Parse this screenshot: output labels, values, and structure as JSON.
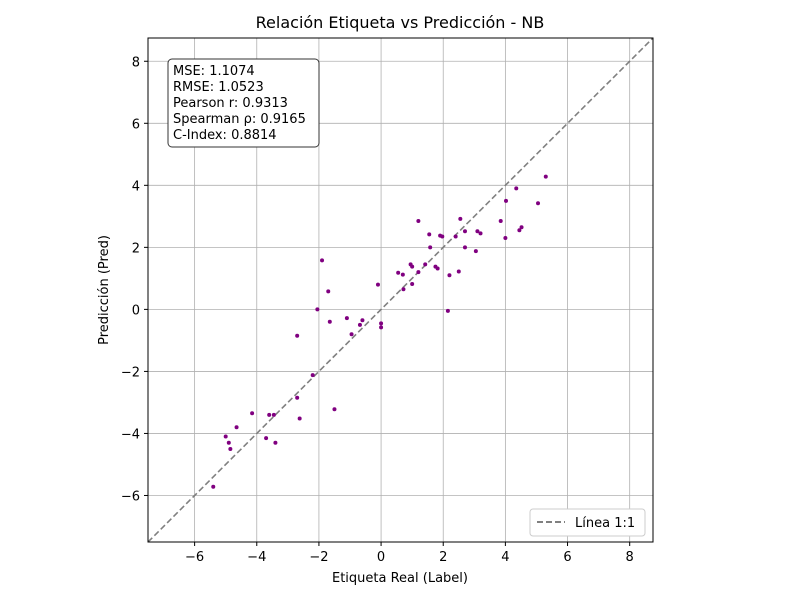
{
  "chart_data": {
    "type": "scatter",
    "title": "Relación Etiqueta vs Predicción - NB",
    "xlabel": "Etiqueta Real (Label)",
    "ylabel": "Predicción (Pred)",
    "xlim": [
      -7.5,
      8.75
    ],
    "ylim": [
      -7.5,
      8.75
    ],
    "xticks": [
      -6,
      -4,
      -2,
      0,
      2,
      4,
      6,
      8
    ],
    "yticks": [
      -6,
      -4,
      -2,
      0,
      2,
      4,
      6,
      8
    ],
    "tick_labels": [
      "−6",
      "−4",
      "−2",
      "0",
      "2",
      "4",
      "6",
      "8"
    ],
    "grid": true,
    "colors": {
      "points": "#800080",
      "identity_line": "#808080",
      "grid": "#b0b0b0"
    },
    "stats": [
      "MSE: 1.1074",
      "RMSE: 1.0523",
      "Pearson r: 0.9313",
      "Spearman ρ: 0.9165",
      "C-Index: 0.8814"
    ],
    "legend": {
      "position": "bottom-right",
      "entries": [
        "Línea 1:1"
      ]
    },
    "identity_line": {
      "from": [
        -7.5,
        -7.5
      ],
      "to": [
        8.75,
        8.75
      ],
      "style": "dashed"
    },
    "points": [
      [
        -5.4,
        -5.72
      ],
      [
        -5.0,
        -4.1
      ],
      [
        -4.9,
        -4.3
      ],
      [
        -4.85,
        -4.5
      ],
      [
        -4.65,
        -3.8
      ],
      [
        -4.15,
        -3.35
      ],
      [
        -3.7,
        -4.15
      ],
      [
        -3.6,
        -3.4
      ],
      [
        -3.45,
        -3.4
      ],
      [
        -3.4,
        -4.3
      ],
      [
        -2.7,
        -0.85
      ],
      [
        -2.7,
        -2.85
      ],
      [
        -2.62,
        -3.52
      ],
      [
        -2.2,
        -2.12
      ],
      [
        -2.05,
        0.0
      ],
      [
        -1.9,
        1.58
      ],
      [
        -1.7,
        0.58
      ],
      [
        -1.65,
        -0.4
      ],
      [
        -1.5,
        -3.22
      ],
      [
        -1.1,
        -0.28
      ],
      [
        -0.95,
        -0.8
      ],
      [
        -0.68,
        -0.5
      ],
      [
        -0.6,
        -0.35
      ],
      [
        -0.1,
        0.8
      ],
      [
        0.0,
        -0.45
      ],
      [
        0.0,
        -0.58
      ],
      [
        0.55,
        1.18
      ],
      [
        0.7,
        1.12
      ],
      [
        0.72,
        0.65
      ],
      [
        0.95,
        1.45
      ],
      [
        1.0,
        1.38
      ],
      [
        1.0,
        0.82
      ],
      [
        1.2,
        1.2
      ],
      [
        1.2,
        2.85
      ],
      [
        1.42,
        1.45
      ],
      [
        1.55,
        2.42
      ],
      [
        1.58,
        2.0
      ],
      [
        1.75,
        1.38
      ],
      [
        1.82,
        1.32
      ],
      [
        1.9,
        2.38
      ],
      [
        1.97,
        2.35
      ],
      [
        2.15,
        -0.05
      ],
      [
        2.2,
        1.1
      ],
      [
        2.4,
        2.35
      ],
      [
        2.5,
        1.22
      ],
      [
        2.55,
        2.92
      ],
      [
        2.7,
        2.52
      ],
      [
        2.7,
        2.0
      ],
      [
        3.05,
        1.88
      ],
      [
        3.1,
        2.52
      ],
      [
        3.2,
        2.45
      ],
      [
        3.85,
        2.85
      ],
      [
        4.0,
        2.3
      ],
      [
        4.02,
        3.5
      ],
      [
        4.35,
        3.9
      ],
      [
        4.45,
        2.55
      ],
      [
        4.52,
        2.65
      ],
      [
        5.05,
        3.42
      ],
      [
        5.3,
        4.28
      ]
    ]
  }
}
